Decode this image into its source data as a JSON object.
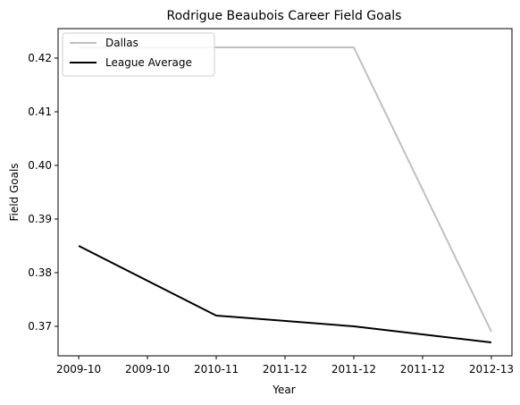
{
  "chart_data": {
    "type": "line",
    "title": "Rodrigue Beaubois Career Field Goals",
    "xlabel": "Year",
    "ylabel": "Field Goals",
    "x_positions": [
      0,
      1,
      2
    ],
    "x_tick_positions": [
      0,
      0.5,
      1,
      1.5,
      2,
      2.5,
      3
    ],
    "x_tick_labels": [
      "2009-10",
      "2009-10",
      "2010-11",
      "2011-12",
      "2011-12",
      "2011-12",
      "2012-13"
    ],
    "ylim": [
      0.3645,
      0.4255
    ],
    "xlim": [
      -0.15,
      3.15
    ],
    "y_ticks": [
      0.37,
      0.38,
      0.39,
      0.4,
      0.41,
      0.42
    ],
    "y_tick_labels": [
      "0.37",
      "0.38",
      "0.39",
      "0.40",
      "0.41",
      "0.42"
    ],
    "grid": false,
    "legend_position": "top-left",
    "series": [
      {
        "name": "Dallas",
        "color": "#bfbfbf",
        "x": [
          0,
          1,
          2,
          3
        ],
        "values": [
          0.422,
          0.422,
          0.422,
          0.369
        ]
      },
      {
        "name": "League Average",
        "color": "#000000",
        "x": [
          0,
          1,
          2,
          3
        ],
        "values": [
          0.385,
          0.372,
          0.37,
          0.367
        ]
      }
    ]
  }
}
